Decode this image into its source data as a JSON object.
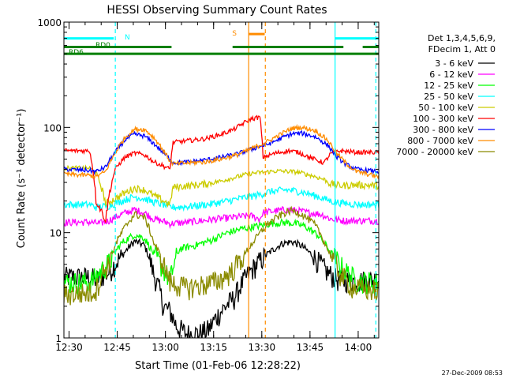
{
  "chart_data": {
    "type": "line",
    "title": "HESSI Observing Summary Count Rates",
    "xlabel": "Start Time (01-Feb-06 12:28:22)",
    "ylabel": "Count Rate (s⁻¹ detector⁻¹)",
    "footer": "27-Dec-2009 08:53",
    "x_unit": "minutes after 12:28:22",
    "xlim": [
      0,
      98
    ],
    "ylim": [
      1,
      1000
    ],
    "y_scale": "log",
    "x_ticks": [
      {
        "t": 1.6,
        "label": "12:30"
      },
      {
        "t": 16.6,
        "label": "12:45"
      },
      {
        "t": 31.6,
        "label": "13:00"
      },
      {
        "t": 46.6,
        "label": "13:15"
      },
      {
        "t": 61.6,
        "label": "13:30"
      },
      {
        "t": 76.6,
        "label": "13:45"
      },
      {
        "t": 91.6,
        "label": "14:00"
      }
    ],
    "y_ticks": [
      {
        "v": 1,
        "label": "1"
      },
      {
        "v": 10,
        "label": "10"
      },
      {
        "v": 100,
        "label": "100"
      },
      {
        "v": 1000,
        "label": "1000"
      }
    ],
    "legend_header": [
      "Det 1,3,4,5,6,9,",
      "FDecim 1, Att 0"
    ],
    "series": [
      {
        "name": "3 - 6 keV",
        "color": "#000000",
        "points": [
          [
            0,
            3.8
          ],
          [
            8,
            3.8
          ],
          [
            10,
            3.6
          ],
          [
            14,
            4.2
          ],
          [
            18,
            6
          ],
          [
            22,
            8.3
          ],
          [
            25,
            7.6
          ],
          [
            28,
            4
          ],
          [
            31,
            2
          ],
          [
            33,
            1.8
          ],
          [
            35,
            1.3
          ],
          [
            38,
            1.1
          ],
          [
            42,
            1.1
          ],
          [
            45,
            1.2
          ],
          [
            49,
            1.8
          ],
          [
            53,
            2.4
          ],
          [
            56,
            3.5
          ],
          [
            60,
            5
          ],
          [
            64,
            6.5
          ],
          [
            68,
            7.9
          ],
          [
            71,
            8.2
          ],
          [
            74,
            7.5
          ],
          [
            78,
            5.8
          ],
          [
            82,
            4.2
          ],
          [
            85,
            3.6
          ],
          [
            91,
            3.5
          ],
          [
            98,
            3.6
          ]
        ]
      },
      {
        "name": "6 - 12 keV",
        "color": "#ff00ff",
        "points": [
          [
            0,
            12.5
          ],
          [
            8,
            12.6
          ],
          [
            11,
            12.2
          ],
          [
            14,
            13
          ],
          [
            18,
            15
          ],
          [
            22,
            16.5
          ],
          [
            25,
            15.5
          ],
          [
            28,
            13.5
          ],
          [
            31,
            12.8
          ],
          [
            33,
            12.2
          ],
          [
            38,
            12.5
          ],
          [
            43,
            13
          ],
          [
            48,
            13.5
          ],
          [
            53,
            14
          ],
          [
            58,
            14.5
          ],
          [
            61,
            13.5
          ],
          [
            62,
            15.5
          ],
          [
            65,
            16
          ],
          [
            69,
            16.5
          ],
          [
            72,
            16.3
          ],
          [
            76,
            15.5
          ],
          [
            80,
            15
          ],
          [
            83,
            13.5
          ],
          [
            87,
            13
          ],
          [
            92,
            13
          ],
          [
            98,
            13
          ]
        ]
      },
      {
        "name": "12 - 25 keV",
        "color": "#00ff00",
        "points": [
          [
            0,
            3.4
          ],
          [
            8,
            3.4
          ],
          [
            10,
            3.8
          ],
          [
            14,
            5.2
          ],
          [
            18,
            8
          ],
          [
            22,
            9.6
          ],
          [
            25,
            8.9
          ],
          [
            28,
            6.2
          ],
          [
            31,
            4.5
          ],
          [
            33,
            3.5
          ],
          [
            36,
            7
          ],
          [
            41,
            7.6
          ],
          [
            46,
            8.5
          ],
          [
            51,
            10
          ],
          [
            56,
            11
          ],
          [
            60,
            11.5
          ],
          [
            65,
            12.3
          ],
          [
            69,
            12.5
          ],
          [
            72,
            12.2
          ],
          [
            75,
            11.5
          ],
          [
            79,
            9.5
          ],
          [
            83,
            6.5
          ],
          [
            87,
            4.5
          ],
          [
            91,
            3.5
          ],
          [
            98,
            3.4
          ]
        ]
      },
      {
        "name": "25 - 50 keV",
        "color": "#00ffff",
        "points": [
          [
            0,
            18.5
          ],
          [
            8,
            18.5
          ],
          [
            10,
            17.5
          ],
          [
            14,
            18
          ],
          [
            18,
            20
          ],
          [
            22,
            22
          ],
          [
            25,
            21
          ],
          [
            28,
            19.5
          ],
          [
            31,
            18.5
          ],
          [
            33,
            17.5
          ],
          [
            36,
            17.5
          ],
          [
            41,
            18
          ],
          [
            46,
            18.8
          ],
          [
            51,
            20
          ],
          [
            56,
            21.5
          ],
          [
            61,
            23
          ],
          [
            64,
            24.5
          ],
          [
            69,
            25.5
          ],
          [
            72,
            25
          ],
          [
            75,
            24
          ],
          [
            79,
            22
          ],
          [
            83,
            20
          ],
          [
            87,
            19
          ],
          [
            92,
            18.5
          ],
          [
            98,
            18.5
          ]
        ]
      },
      {
        "name": "50 - 100 keV",
        "color": "#cccc00",
        "points": [
          [
            0,
            41
          ],
          [
            8,
            41
          ],
          [
            10,
            37
          ],
          [
            13,
            19
          ],
          [
            16,
            21
          ],
          [
            19,
            24
          ],
          [
            22,
            26.5
          ],
          [
            25,
            25.5
          ],
          [
            28,
            22.5
          ],
          [
            31,
            20
          ],
          [
            33,
            18.5
          ],
          [
            34,
            27
          ],
          [
            39,
            28
          ],
          [
            44,
            29
          ],
          [
            49,
            31
          ],
          [
            54,
            34
          ],
          [
            58,
            36.5
          ],
          [
            62,
            37.5
          ],
          [
            66,
            38.5
          ],
          [
            70,
            38.2
          ],
          [
            73,
            37.5
          ],
          [
            77,
            35
          ],
          [
            81,
            32
          ],
          [
            83,
            29
          ],
          [
            86,
            28
          ],
          [
            91,
            28.5
          ],
          [
            98,
            28
          ]
        ]
      },
      {
        "name": "100 - 300 keV",
        "color": "#ff0000",
        "points": [
          [
            0,
            60
          ],
          [
            8,
            60
          ],
          [
            10,
            20
          ],
          [
            13,
            13
          ],
          [
            16,
            40
          ],
          [
            19,
            52
          ],
          [
            22,
            57
          ],
          [
            25,
            55
          ],
          [
            28,
            47
          ],
          [
            31,
            43
          ],
          [
            33,
            40
          ],
          [
            34,
            72
          ],
          [
            39,
            75
          ],
          [
            44,
            78
          ],
          [
            49,
            86
          ],
          [
            53,
            96
          ],
          [
            56,
            110
          ],
          [
            58,
            120
          ],
          [
            61,
            125
          ],
          [
            62,
            52
          ],
          [
            66,
            57
          ],
          [
            70,
            60
          ],
          [
            73,
            58
          ],
          [
            77,
            51
          ],
          [
            81,
            46
          ],
          [
            83,
            56
          ],
          [
            86,
            60
          ],
          [
            91,
            58
          ],
          [
            98,
            58
          ]
        ]
      },
      {
        "name": "300 - 800 keV",
        "color": "#0000ff",
        "points": [
          [
            0,
            40
          ],
          [
            8,
            39
          ],
          [
            10,
            38
          ],
          [
            13,
            42
          ],
          [
            16,
            58
          ],
          [
            19,
            76
          ],
          [
            22,
            86
          ],
          [
            25,
            83
          ],
          [
            28,
            70
          ],
          [
            31,
            57
          ],
          [
            33,
            50
          ],
          [
            34,
            46
          ],
          [
            39,
            47
          ],
          [
            44,
            49
          ],
          [
            49,
            52
          ],
          [
            54,
            56
          ],
          [
            57,
            60
          ],
          [
            61,
            66
          ],
          [
            64,
            70
          ],
          [
            68,
            80
          ],
          [
            71,
            87
          ],
          [
            74,
            88
          ],
          [
            78,
            82
          ],
          [
            82,
            68
          ],
          [
            85,
            52
          ],
          [
            88,
            44
          ],
          [
            91,
            40
          ],
          [
            98,
            38
          ]
        ]
      },
      {
        "name": "800 - 7000 keV",
        "color": "#ff8c00",
        "points": [
          [
            0,
            36
          ],
          [
            8,
            35
          ],
          [
            10,
            34
          ],
          [
            13,
            38
          ],
          [
            16,
            57
          ],
          [
            19,
            80
          ],
          [
            22,
            96
          ],
          [
            25,
            96
          ],
          [
            28,
            80
          ],
          [
            31,
            60
          ],
          [
            33,
            48
          ],
          [
            34,
            45
          ],
          [
            39,
            46
          ],
          [
            44,
            47
          ],
          [
            49,
            50
          ],
          [
            54,
            55
          ],
          [
            57,
            60
          ],
          [
            61,
            68
          ],
          [
            64,
            75
          ],
          [
            68,
            88
          ],
          [
            71,
            98
          ],
          [
            74,
            100
          ],
          [
            78,
            94
          ],
          [
            82,
            76
          ],
          [
            85,
            56
          ],
          [
            88,
            45
          ],
          [
            91,
            38
          ],
          [
            98,
            34
          ]
        ]
      },
      {
        "name": "7000 - 20000 keV",
        "color": "#8b8b00",
        "points": [
          [
            0,
            2.6
          ],
          [
            8,
            2.7
          ],
          [
            10,
            2.9
          ],
          [
            14,
            5.2
          ],
          [
            18,
            10
          ],
          [
            22,
            15
          ],
          [
            25,
            14
          ],
          [
            28,
            8
          ],
          [
            31,
            5
          ],
          [
            33,
            3.4
          ],
          [
            38,
            3
          ],
          [
            43,
            3.2
          ],
          [
            48,
            3.5
          ],
          [
            52,
            4.2
          ],
          [
            56,
            6
          ],
          [
            60,
            9
          ],
          [
            64,
            12.5
          ],
          [
            68,
            15
          ],
          [
            71,
            16.3
          ],
          [
            74,
            15
          ],
          [
            78,
            12
          ],
          [
            82,
            7
          ],
          [
            86,
            4
          ],
          [
            90,
            3
          ],
          [
            98,
            2.8
          ]
        ]
      }
    ],
    "bars": [
      {
        "label": "N",
        "color": "#00ffff",
        "y": 700,
        "segments": [
          [
            0,
            15.5
          ],
          [
            84.5,
            98
          ]
        ]
      },
      {
        "label": "RD0",
        "color": "#008000",
        "y": 580,
        "segments": [
          [
            0,
            33.5
          ],
          [
            52.5,
            87
          ],
          [
            93,
            98
          ]
        ]
      },
      {
        "label": "RD6",
        "color": "#008000",
        "y": 500,
        "segments": [
          [
            0,
            98
          ]
        ]
      },
      {
        "label": "S",
        "color": "#ff8c00",
        "y": 770,
        "segments": [
          [
            57.5,
            62.5
          ]
        ]
      }
    ],
    "vlines": [
      {
        "t": 16,
        "color": "#00ffff",
        "dash": true
      },
      {
        "t": 84.4,
        "color": "#00ffff",
        "dash": false
      },
      {
        "t": 97.1,
        "color": "#00ffff",
        "dash": true
      },
      {
        "t": 57.5,
        "color": "#ff8c00",
        "dash": false
      },
      {
        "t": 62.7,
        "color": "#ff8c00",
        "dash": true
      }
    ]
  }
}
